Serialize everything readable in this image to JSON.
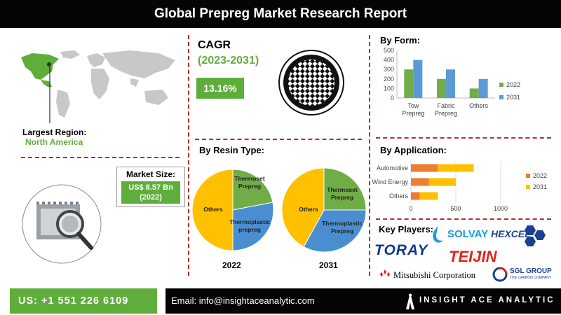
{
  "title": "Global Prepreg Market Research Report",
  "region": {
    "label": "Largest Region:",
    "value": "North America"
  },
  "cagr": {
    "title": "CAGR",
    "period": "(2023-2031)",
    "value": "13.16%"
  },
  "market_size": {
    "label": "Market Size:",
    "value": "US$ 8.57 Bn",
    "year": "(2022)"
  },
  "sections": {
    "form": "By Form:",
    "resin": "By Resin Type:",
    "application": "By Application:",
    "players": "Key Players:"
  },
  "players": [
    "SOLVAY",
    "HEXCEL",
    "TORAY",
    "TEIJIN",
    "Mitsubishi Corporation",
    "SGL GROUP",
    "THE CARBON COMPANY"
  ],
  "footer": {
    "phone": "US: +1 551 226 6109",
    "email": "Email: info@insightaceanalytic.com",
    "brand": "INSIGHT ACE ANALYTIC"
  },
  "colors": {
    "green": "#5fae3c",
    "blue": "#5b9bd5",
    "orange": "#ed7d31",
    "yellow": "#ffc000",
    "accent_red": "#b5302c"
  },
  "chart_data": [
    {
      "type": "bar",
      "title": "By Form:",
      "categories": [
        "Tow Prepreg",
        "Fabric Prepreg",
        "Others"
      ],
      "series": [
        {
          "name": "2022",
          "values": [
            300,
            200,
            100
          ],
          "color": "#70ad47"
        },
        {
          "name": "2031",
          "values": [
            400,
            300,
            200
          ],
          "color": "#5b9bd5"
        }
      ],
      "ylim": [
        0,
        500
      ],
      "yticks": [
        0,
        100,
        200,
        300,
        400,
        500
      ],
      "legend": "right"
    },
    {
      "type": "bar",
      "orientation": "horizontal",
      "stacked": true,
      "title": "By Application:",
      "categories": [
        "Automotive",
        "Wind Energy",
        "Others"
      ],
      "series": [
        {
          "name": "2022",
          "values": [
            300,
            200,
            100
          ],
          "color": "#ed7d31"
        },
        {
          "name": "2031",
          "values": [
            400,
            300,
            200
          ],
          "color": "#ffc000"
        }
      ],
      "xlim": [
        0,
        1000
      ],
      "xticks": [
        0,
        500,
        1000
      ],
      "legend": "right"
    },
    {
      "type": "pie",
      "title": "2022",
      "slices": [
        {
          "label": "Thermoset Prepreg",
          "value": 22,
          "color": "#70ad47"
        },
        {
          "label": "Thermoplastic prepreg",
          "value": 28,
          "color": "#4a8ed0"
        },
        {
          "label": "Others",
          "value": 50,
          "color": "#ffc000"
        }
      ]
    },
    {
      "type": "pie",
      "title": "2031",
      "slices": [
        {
          "label": "Thermoset Prepreg",
          "value": 25,
          "color": "#70ad47"
        },
        {
          "label": "Thermoplastic Prepreg",
          "value": 33,
          "color": "#4a8ed0"
        },
        {
          "label": "Others",
          "value": 42,
          "color": "#ffc000"
        }
      ]
    }
  ]
}
